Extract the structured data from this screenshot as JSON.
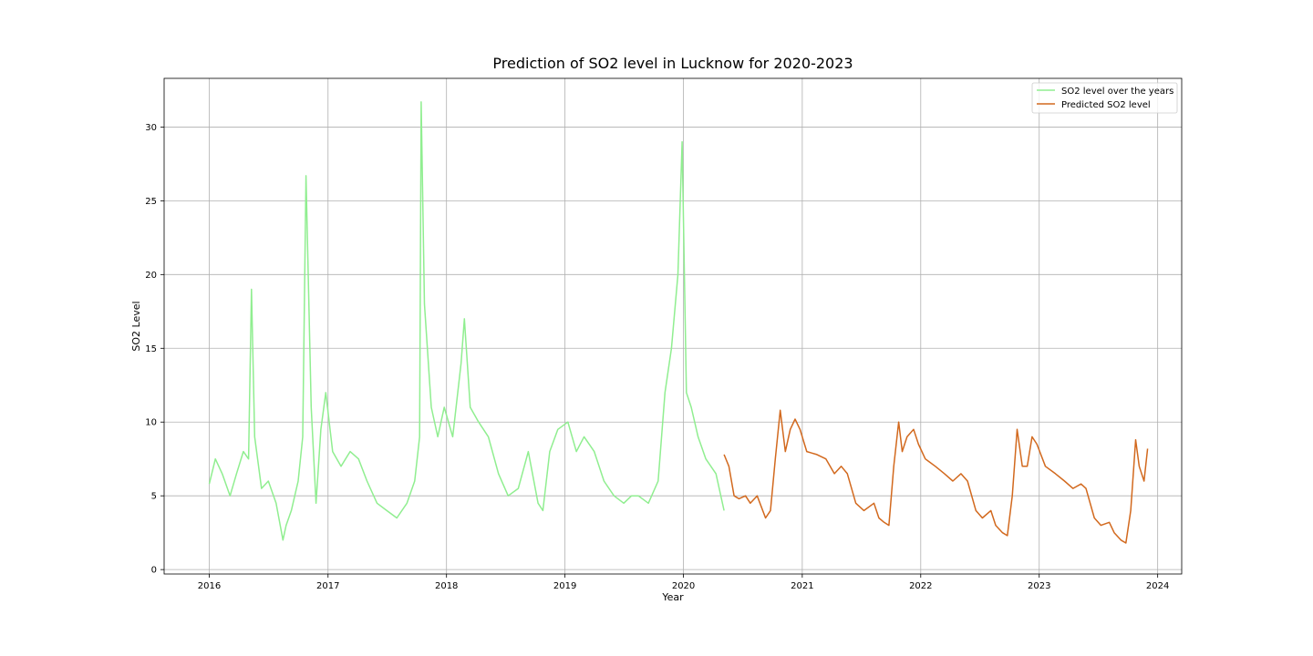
{
  "chart_data": {
    "type": "line",
    "title": "Prediction of SO2 level in Lucknow for 2020-2023",
    "xlabel": "Year",
    "ylabel": "SO2 Level",
    "x_ticks": [
      "2016",
      "2017",
      "2018",
      "2019",
      "2020",
      "2021",
      "2022",
      "2023",
      "2024"
    ],
    "y_ticks": [
      0,
      5,
      10,
      15,
      20,
      25,
      30
    ],
    "xlim": [
      "2015-08-15",
      "2024-03-15"
    ],
    "ylim": [
      -0.3,
      33.3
    ],
    "grid": true,
    "legend_position": "top-right",
    "series": [
      {
        "name": "SO2 level over the years",
        "color": "#90ee90",
        "x": [
          "2016-01-01",
          "2016-01-20",
          "2016-02-10",
          "2016-03-05",
          "2016-03-25",
          "2016-04-15",
          "2016-05-01",
          "2016-05-10",
          "2016-05-20",
          "2016-06-10",
          "2016-07-01",
          "2016-07-25",
          "2016-08-15",
          "2016-08-25",
          "2016-09-10",
          "2016-10-01",
          "2016-10-15",
          "2016-10-25",
          "2016-11-10",
          "2016-11-25",
          "2016-12-10",
          "2016-12-25",
          "2017-01-15",
          "2017-02-10",
          "2017-03-10",
          "2017-04-05",
          "2017-05-01",
          "2017-06-01",
          "2017-07-01",
          "2017-08-01",
          "2017-09-01",
          "2017-09-25",
          "2017-10-10",
          "2017-10-15",
          "2017-10-25",
          "2017-11-15",
          "2017-12-05",
          "2017-12-25",
          "2018-01-20",
          "2018-02-15",
          "2018-02-25",
          "2018-03-15",
          "2018-04-10",
          "2018-05-10",
          "2018-06-10",
          "2018-07-10",
          "2018-08-10",
          "2018-09-10",
          "2018-10-10",
          "2018-10-25",
          "2018-11-15",
          "2018-12-10",
          "2019-01-10",
          "2019-02-05",
          "2019-03-01",
          "2019-04-01",
          "2019-05-01",
          "2019-06-01",
          "2019-07-01",
          "2019-07-25",
          "2019-08-15",
          "2019-09-15",
          "2019-10-15",
          "2019-11-05",
          "2019-11-25",
          "2019-12-15",
          "2019-12-28",
          "2020-01-10",
          "2020-01-25",
          "2020-02-15",
          "2020-03-10",
          "2020-04-10",
          "2020-05-05"
        ],
        "values": [
          5.8,
          7.5,
          6.5,
          5.0,
          6.5,
          8.0,
          7.5,
          19.0,
          9.0,
          5.5,
          6.0,
          4.5,
          2.0,
          3.0,
          4.0,
          6.0,
          9.0,
          26.7,
          11.0,
          4.5,
          9.5,
          12.0,
          8.0,
          7.0,
          8.0,
          7.5,
          6.0,
          4.5,
          4.0,
          3.5,
          4.5,
          6.0,
          9.0,
          31.7,
          18.0,
          11.0,
          9.0,
          11.0,
          9.0,
          14.0,
          17.0,
          11.0,
          10.0,
          9.0,
          6.5,
          5.0,
          5.5,
          8.0,
          4.5,
          4.0,
          8.0,
          9.5,
          10.0,
          8.0,
          9.0,
          8.0,
          6.0,
          5.0,
          4.5,
          5.0,
          5.0,
          4.5,
          6.0,
          12.0,
          15.0,
          20.0,
          29.0,
          12.0,
          11.0,
          9.0,
          7.5,
          6.5,
          4.0
        ]
      },
      {
        "name": "Predicted SO2 level",
        "color": "#d2691e",
        "x": [
          "2020-05-05",
          "2020-05-20",
          "2020-06-05",
          "2020-06-20",
          "2020-07-10",
          "2020-07-25",
          "2020-08-15",
          "2020-09-10",
          "2020-09-25",
          "2020-10-10",
          "2020-10-25",
          "2020-11-10",
          "2020-11-25",
          "2020-12-10",
          "2020-12-25",
          "2021-01-15",
          "2021-02-15",
          "2021-03-15",
          "2021-04-10",
          "2021-05-01",
          "2021-05-20",
          "2021-06-15",
          "2021-07-10",
          "2021-08-10",
          "2021-08-25",
          "2021-09-10",
          "2021-09-25",
          "2021-10-10",
          "2021-10-25",
          "2021-11-05",
          "2021-11-20",
          "2021-12-10",
          "2021-12-25",
          "2022-01-15",
          "2022-02-15",
          "2022-03-15",
          "2022-04-10",
          "2022-05-05",
          "2022-05-25",
          "2022-06-20",
          "2022-07-10",
          "2022-08-05",
          "2022-08-20",
          "2022-09-10",
          "2022-09-25",
          "2022-10-10",
          "2022-10-25",
          "2022-11-10",
          "2022-11-25",
          "2022-12-10",
          "2022-12-25",
          "2023-01-20",
          "2023-02-20",
          "2023-03-20",
          "2023-04-15",
          "2023-05-10",
          "2023-05-25",
          "2023-06-20",
          "2023-07-10",
          "2023-08-05",
          "2023-08-20",
          "2023-09-10",
          "2023-09-25",
          "2023-10-10",
          "2023-10-25",
          "2023-11-05",
          "2023-11-20",
          "2023-12-01"
        ],
        "values": [
          7.8,
          7.0,
          5.0,
          4.8,
          5.0,
          4.5,
          5.0,
          3.5,
          4.0,
          7.5,
          10.8,
          8.0,
          9.5,
          10.2,
          9.5,
          8.0,
          7.8,
          7.5,
          6.5,
          7.0,
          6.5,
          4.5,
          4.0,
          4.5,
          3.5,
          3.2,
          3.0,
          7.0,
          10.0,
          8.0,
          9.0,
          9.5,
          8.5,
          7.5,
          7.0,
          6.5,
          6.0,
          6.5,
          6.0,
          4.0,
          3.5,
          4.0,
          3.0,
          2.5,
          2.3,
          5.0,
          9.5,
          7.0,
          7.0,
          9.0,
          8.5,
          7.0,
          6.5,
          6.0,
          5.5,
          5.8,
          5.5,
          3.5,
          3.0,
          3.2,
          2.5,
          2.0,
          1.8,
          4.0,
          8.8,
          7.0,
          6.0,
          8.2
        ]
      }
    ]
  }
}
